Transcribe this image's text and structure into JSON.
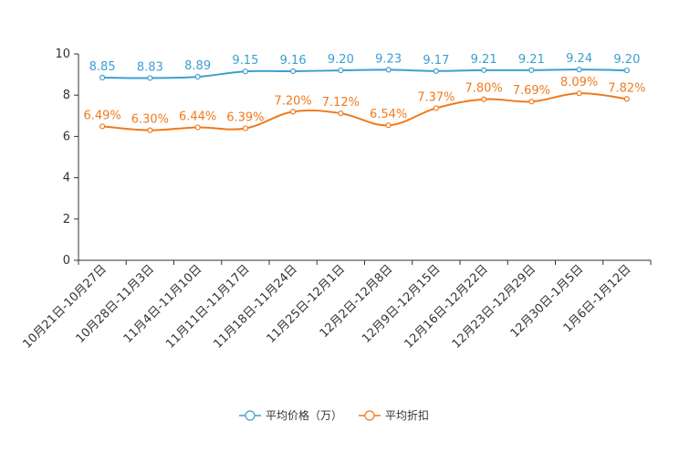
{
  "chart_data": {
    "type": "line",
    "title": "",
    "xlabel": "",
    "ylabel": "",
    "ylim": [
      0,
      10
    ],
    "yticks": [
      0,
      2,
      4,
      6,
      8,
      10
    ],
    "grid": false,
    "legend_position": "bottom-center",
    "categories": [
      "10月21日-10月27日",
      "10月28日-11月3日",
      "11月4日-11月10日",
      "11月11日-11月17日",
      "11月18日-11月24日",
      "11月25日-12月1日",
      "12月2日-12月8日",
      "12月9日-12月15日",
      "12月16日-12月22日",
      "12月23日-12月29日",
      "12月30日-1月5日",
      "1月6日-1月12日"
    ],
    "series": [
      {
        "name": "平均价格（万）",
        "color": "#3c9fd1",
        "values": [
          8.85,
          8.83,
          8.89,
          9.15,
          9.16,
          9.2,
          9.23,
          9.17,
          9.21,
          9.21,
          9.24,
          9.2
        ],
        "labels": [
          "8.85",
          "8.83",
          "8.89",
          "9.15",
          "9.16",
          "9.20",
          "9.23",
          "9.17",
          "9.21",
          "9.21",
          "9.24",
          "9.20"
        ]
      },
      {
        "name": "平均折扣",
        "color": "#f07a1c",
        "values": [
          6.49,
          6.3,
          6.44,
          6.39,
          7.2,
          7.12,
          6.54,
          7.37,
          7.8,
          7.69,
          8.09,
          7.82
        ],
        "labels": [
          "6.49%",
          "6.30%",
          "6.44%",
          "6.39%",
          "7.20%",
          "7.12%",
          "6.54%",
          "7.37%",
          "7.80%",
          "7.69%",
          "8.09%",
          "7.82%"
        ]
      }
    ]
  }
}
